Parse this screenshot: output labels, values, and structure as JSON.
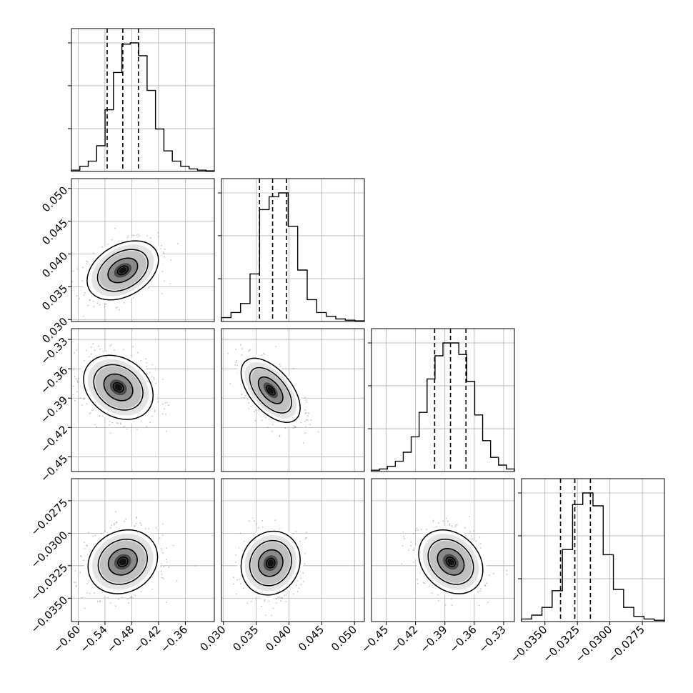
{
  "chart_data": {
    "type": "corner",
    "grid": true,
    "parameters": [
      {
        "range": [
          -0.615,
          -0.295
        ],
        "ticks": [
          -0.6,
          -0.54,
          -0.48,
          -0.42,
          -0.36
        ],
        "tick_labels": [
          "−0.60",
          "−0.54",
          "−0.48",
          "−0.42",
          "−0.36"
        ],
        "quantiles": [
          -0.535,
          -0.5,
          -0.465
        ],
        "hist": [
          0.01,
          0.04,
          0.08,
          0.2,
          0.48,
          0.77,
          0.99,
          1.0,
          0.9,
          0.63,
          0.33,
          0.16,
          0.08,
          0.04,
          0.02,
          0.01,
          0.005
        ]
      },
      {
        "range": [
          0.0297,
          0.0515
        ],
        "ticks": [
          0.03,
          0.035,
          0.04,
          0.045,
          0.05
        ],
        "tick_labels": [
          "0.030",
          "0.035",
          "0.040",
          "0.045",
          "0.050"
        ],
        "quantiles": [
          0.0355,
          0.0375,
          0.0396
        ],
        "hist": [
          0.03,
          0.07,
          0.14,
          0.37,
          0.87,
          0.97,
          1.0,
          0.74,
          0.4,
          0.17,
          0.07,
          0.04,
          0.02,
          0.01,
          0.005
        ]
      },
      {
        "range": [
          -0.465,
          -0.319
        ],
        "ticks": [
          -0.45,
          -0.42,
          -0.39,
          -0.36,
          -0.33
        ],
        "tick_labels": [
          "−0.45",
          "−0.42",
          "−0.39",
          "−0.36",
          "−0.33"
        ],
        "quantiles": [
          -0.4005,
          -0.3843,
          -0.3685
        ],
        "hist": [
          0.01,
          0.02,
          0.04,
          0.08,
          0.15,
          0.27,
          0.46,
          0.72,
          0.9,
          1.0,
          1.0,
          0.91,
          0.7,
          0.44,
          0.24,
          0.11,
          0.05,
          0.02
        ]
      },
      {
        "range": [
          -0.0368,
          -0.0258
        ],
        "ticks": [
          -0.035,
          -0.0325,
          -0.03,
          -0.0275
        ],
        "tick_labels": [
          "−0.0350",
          "−0.0325",
          "−0.0300",
          "−0.0275"
        ],
        "quantiles": [
          -0.0338,
          -0.0327,
          -0.0315
        ],
        "hist": [
          0.02,
          0.05,
          0.11,
          0.24,
          0.56,
          0.91,
          1.0,
          0.9,
          0.52,
          0.25,
          0.11,
          0.04,
          0.02,
          0.01
        ]
      }
    ],
    "pairs": [
      {
        "x": 0,
        "y": 1,
        "center": [
          -0.5,
          0.0375
        ],
        "corr": 0.35,
        "spread": [
          0.039,
          0.0022
        ]
      },
      {
        "x": 0,
        "y": 2,
        "center": [
          -0.51,
          -0.379
        ],
        "corr": -0.25,
        "spread": [
          0.038,
          0.016
        ]
      },
      {
        "x": 1,
        "y": 2,
        "center": [
          0.0372,
          -0.382
        ],
        "corr": -0.55,
        "spread": [
          0.0022,
          0.016
        ]
      },
      {
        "x": 0,
        "y": 3,
        "center": [
          -0.5,
          -0.0322
        ],
        "corr": 0.15,
        "spread": [
          0.038,
          0.0012
        ]
      },
      {
        "x": 1,
        "y": 3,
        "center": [
          0.0372,
          -0.0323
        ],
        "corr": 0.1,
        "spread": [
          0.0022,
          0.0012
        ]
      },
      {
        "x": 2,
        "y": 3,
        "center": [
          -0.384,
          -0.0322
        ],
        "corr": -0.25,
        "spread": [
          0.016,
          0.0012
        ]
      }
    ]
  }
}
